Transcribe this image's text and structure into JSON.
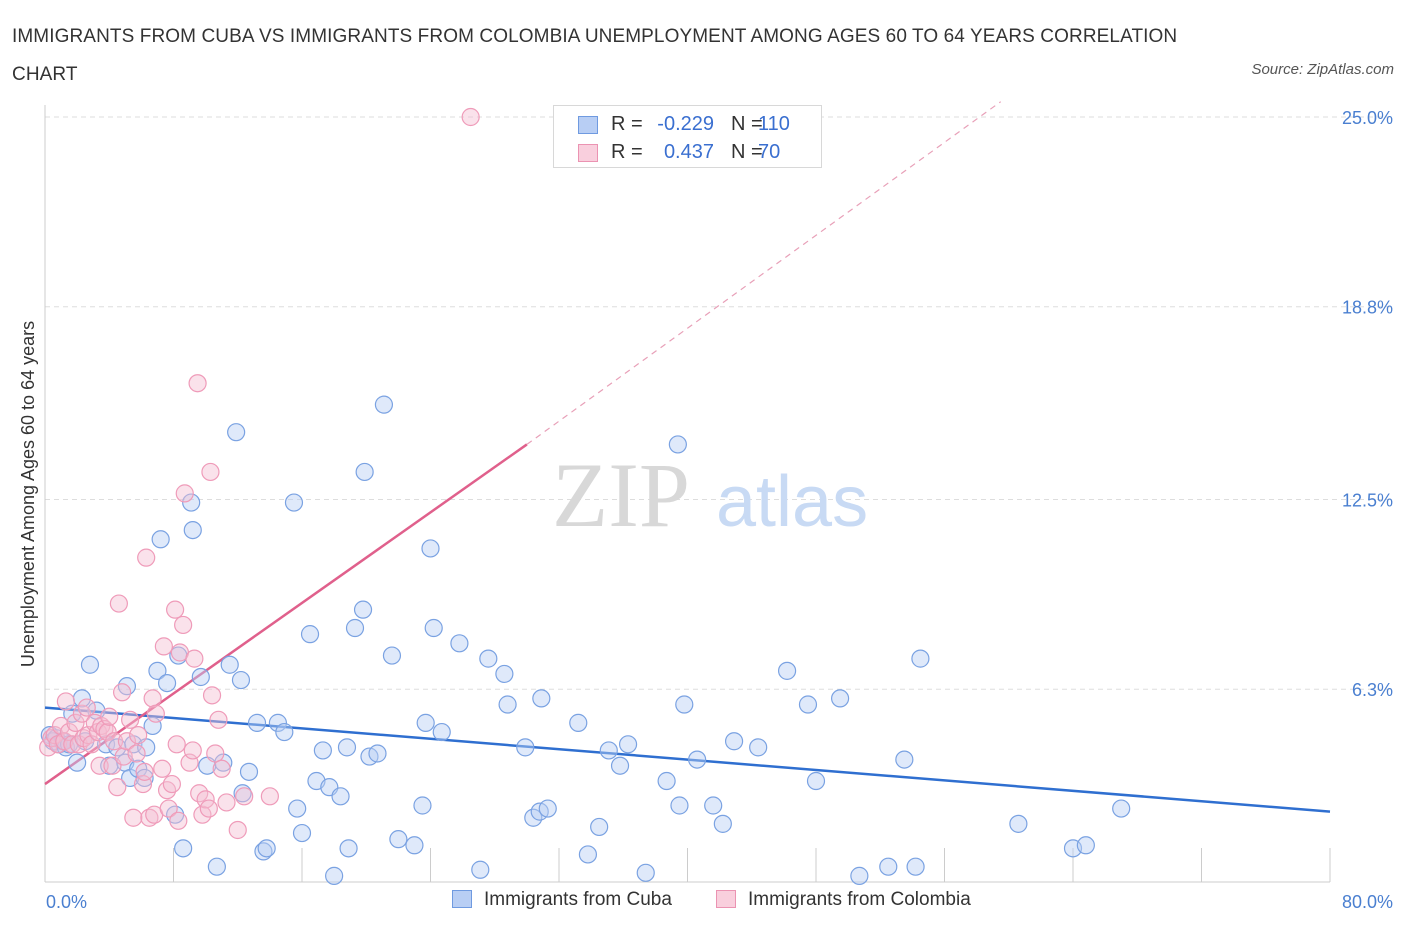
{
  "title": "IMMIGRANTS FROM CUBA VS IMMIGRANTS FROM COLOMBIA UNEMPLOYMENT AMONG AGES 60 TO 64 YEARS CORRELATION CHART",
  "source": "Source: ZipAtlas.com",
  "watermark": {
    "zip": "ZIP",
    "atlas": "atlas"
  },
  "legend": {
    "rows": [
      {
        "r_label": "R =",
        "r_value": "-0.229",
        "n_label": "N =",
        "n_value": "110"
      },
      {
        "r_label": "R =",
        "r_value": "0.437",
        "n_label": "N =",
        "n_value": "70"
      }
    ]
  },
  "colors": {
    "cuba": "#4a80d8",
    "cuba_fill": "#b8cef4",
    "colombia": "#e06a94",
    "colombia_fill": "#f5bfd2",
    "grid": "#dddddd",
    "tick_text": "#4a7fd0"
  },
  "chart_data": {
    "type": "scatter",
    "title": "IMMIGRANTS FROM CUBA VS IMMIGRANTS FROM COLOMBIA UNEMPLOYMENT AMONG AGES 60 TO 64 YEARS CORRELATION CHART",
    "xlabel": "",
    "ylabel": "Unemployment Among Ages 60 to 64 years",
    "xlim": [
      0,
      80
    ],
    "ylim": [
      0,
      25.5
    ],
    "x_tick_labels": [
      "0.0%",
      "80.0%"
    ],
    "x_ticks": [
      0,
      80
    ],
    "x_minor_ticks": [
      8,
      16,
      24,
      32,
      40,
      48,
      56,
      64,
      72,
      80
    ],
    "y_ticks": [
      6.3,
      12.5,
      18.8,
      25.0
    ],
    "y_tick_labels": [
      "6.3%",
      "12.5%",
      "18.8%",
      "25.0%"
    ],
    "grid": true,
    "legend_position": "top-center",
    "series": [
      {
        "name": "Immigrants from Cuba",
        "r": -0.229,
        "n": 110,
        "trend": {
          "x": [
            0,
            80
          ],
          "y": [
            5.7,
            2.3
          ],
          "dashed_extension": false
        },
        "points": [
          [
            0.3,
            4.8
          ],
          [
            0.5,
            4.6
          ],
          [
            0.7,
            4.7
          ],
          [
            0.9,
            4.5
          ],
          [
            1.1,
            4.6
          ],
          [
            1.3,
            4.4
          ],
          [
            1.5,
            4.5
          ],
          [
            1.7,
            5.5
          ],
          [
            2.0,
            3.9
          ],
          [
            2.3,
            6.0
          ],
          [
            2.5,
            4.6
          ],
          [
            2.8,
            7.1
          ],
          [
            3.2,
            5.6
          ],
          [
            3.8,
            4.5
          ],
          [
            4.0,
            3.8
          ],
          [
            4.5,
            4.4
          ],
          [
            5.0,
            3.9
          ],
          [
            5.1,
            6.4
          ],
          [
            5.3,
            3.4
          ],
          [
            5.5,
            4.5
          ],
          [
            5.8,
            3.7
          ],
          [
            6.2,
            3.4
          ],
          [
            6.3,
            4.4
          ],
          [
            6.7,
            5.1
          ],
          [
            7.0,
            6.9
          ],
          [
            7.2,
            11.2
          ],
          [
            7.6,
            6.5
          ],
          [
            8.1,
            2.2
          ],
          [
            8.3,
            7.4
          ],
          [
            8.6,
            1.1
          ],
          [
            9.1,
            12.4
          ],
          [
            9.2,
            11.5
          ],
          [
            9.7,
            6.7
          ],
          [
            10.1,
            3.8
          ],
          [
            10.7,
            0.5
          ],
          [
            11.1,
            3.9
          ],
          [
            11.5,
            7.1
          ],
          [
            11.9,
            14.7
          ],
          [
            12.2,
            6.6
          ],
          [
            12.3,
            2.9
          ],
          [
            12.7,
            3.6
          ],
          [
            13.2,
            5.2
          ],
          [
            13.6,
            1.0
          ],
          [
            13.8,
            1.1
          ],
          [
            14.5,
            5.2
          ],
          [
            14.9,
            4.9
          ],
          [
            15.5,
            12.4
          ],
          [
            15.7,
            2.4
          ],
          [
            16.0,
            1.6
          ],
          [
            16.5,
            8.1
          ],
          [
            16.9,
            3.3
          ],
          [
            17.3,
            4.3
          ],
          [
            17.7,
            3.1
          ],
          [
            18.0,
            0.2
          ],
          [
            18.4,
            2.8
          ],
          [
            18.8,
            4.4
          ],
          [
            18.9,
            1.1
          ],
          [
            19.3,
            8.3
          ],
          [
            19.8,
            8.9
          ],
          [
            19.9,
            13.4
          ],
          [
            20.2,
            4.1
          ],
          [
            20.7,
            4.2
          ],
          [
            21.1,
            15.6
          ],
          [
            21.6,
            7.4
          ],
          [
            22.0,
            1.4
          ],
          [
            23.0,
            1.2
          ],
          [
            23.5,
            2.5
          ],
          [
            23.7,
            5.2
          ],
          [
            24.0,
            10.9
          ],
          [
            24.2,
            8.3
          ],
          [
            24.7,
            4.9
          ],
          [
            25.8,
            7.8
          ],
          [
            27.1,
            0.4
          ],
          [
            27.6,
            7.3
          ],
          [
            28.6,
            6.8
          ],
          [
            28.8,
            5.8
          ],
          [
            29.9,
            4.4
          ],
          [
            30.4,
            2.1
          ],
          [
            30.8,
            2.3
          ],
          [
            30.9,
            6.0
          ],
          [
            31.3,
            2.4
          ],
          [
            33.2,
            5.2
          ],
          [
            33.8,
            0.9
          ],
          [
            34.5,
            1.8
          ],
          [
            35.1,
            4.3
          ],
          [
            35.8,
            3.8
          ],
          [
            36.3,
            4.5
          ],
          [
            37.4,
            0.3
          ],
          [
            38.7,
            3.3
          ],
          [
            39.4,
            14.3
          ],
          [
            39.5,
            2.5
          ],
          [
            39.8,
            5.8
          ],
          [
            40.6,
            4.0
          ],
          [
            41.6,
            2.5
          ],
          [
            42.2,
            1.9
          ],
          [
            42.9,
            4.6
          ],
          [
            44.4,
            4.4
          ],
          [
            46.2,
            6.9
          ],
          [
            47.5,
            5.8
          ],
          [
            48.0,
            3.3
          ],
          [
            49.5,
            6.0
          ],
          [
            50.7,
            0.2
          ],
          [
            52.5,
            0.5
          ],
          [
            53.5,
            4.0
          ],
          [
            54.2,
            0.5
          ],
          [
            54.5,
            7.3
          ],
          [
            60.6,
            1.9
          ],
          [
            64.0,
            1.1
          ],
          [
            64.8,
            1.2
          ],
          [
            67.0,
            2.4
          ]
        ]
      },
      {
        "name": "Immigrants from Colombia",
        "r": 0.437,
        "n": 70,
        "trend": {
          "x": [
            0,
            30
          ],
          "y": [
            3.2,
            14.3
          ],
          "dashed_extension": true,
          "dashed_to": [
            59.5,
            25.5
          ]
        },
        "points": [
          [
            0.2,
            4.4
          ],
          [
            0.4,
            4.7
          ],
          [
            0.6,
            4.8
          ],
          [
            0.8,
            4.5
          ],
          [
            1.0,
            5.1
          ],
          [
            1.2,
            4.6
          ],
          [
            1.3,
            5.9
          ],
          [
            1.5,
            4.9
          ],
          [
            1.7,
            4.5
          ],
          [
            1.9,
            5.2
          ],
          [
            2.1,
            4.5
          ],
          [
            2.3,
            5.5
          ],
          [
            2.4,
            4.7
          ],
          [
            2.6,
            5.7
          ],
          [
            2.7,
            4.8
          ],
          [
            2.9,
            4.5
          ],
          [
            3.1,
            5.2
          ],
          [
            3.3,
            4.9
          ],
          [
            3.4,
            3.8
          ],
          [
            3.5,
            5.1
          ],
          [
            3.7,
            5.0
          ],
          [
            3.9,
            4.9
          ],
          [
            4.0,
            5.4
          ],
          [
            4.2,
            3.8
          ],
          [
            4.3,
            4.6
          ],
          [
            4.5,
            3.1
          ],
          [
            4.6,
            9.1
          ],
          [
            4.8,
            6.2
          ],
          [
            4.9,
            4.1
          ],
          [
            5.1,
            4.6
          ],
          [
            5.3,
            5.3
          ],
          [
            5.5,
            2.1
          ],
          [
            5.7,
            4.2
          ],
          [
            5.8,
            4.8
          ],
          [
            6.1,
            3.2
          ],
          [
            6.2,
            3.6
          ],
          [
            6.3,
            10.6
          ],
          [
            6.5,
            2.1
          ],
          [
            6.7,
            6.0
          ],
          [
            6.8,
            2.2
          ],
          [
            6.9,
            5.5
          ],
          [
            7.3,
            3.7
          ],
          [
            7.4,
            7.7
          ],
          [
            7.6,
            3.0
          ],
          [
            7.7,
            2.4
          ],
          [
            7.9,
            3.2
          ],
          [
            8.1,
            8.9
          ],
          [
            8.2,
            4.5
          ],
          [
            8.3,
            2.0
          ],
          [
            8.4,
            7.5
          ],
          [
            8.6,
            8.4
          ],
          [
            8.7,
            12.7
          ],
          [
            9.0,
            3.9
          ],
          [
            9.2,
            4.3
          ],
          [
            9.3,
            7.3
          ],
          [
            9.5,
            16.3
          ],
          [
            9.6,
            2.9
          ],
          [
            9.8,
            2.2
          ],
          [
            10.0,
            2.7
          ],
          [
            10.2,
            2.4
          ],
          [
            10.3,
            13.4
          ],
          [
            10.4,
            6.1
          ],
          [
            10.6,
            4.2
          ],
          [
            10.8,
            5.3
          ],
          [
            11.0,
            3.7
          ],
          [
            11.3,
            2.6
          ],
          [
            12.0,
            1.7
          ],
          [
            12.4,
            2.8
          ],
          [
            14.0,
            2.8
          ],
          [
            26.5,
            25.0
          ]
        ]
      }
    ],
    "bottom_legend": [
      "Immigrants from Cuba",
      "Immigrants from Colombia"
    ]
  }
}
